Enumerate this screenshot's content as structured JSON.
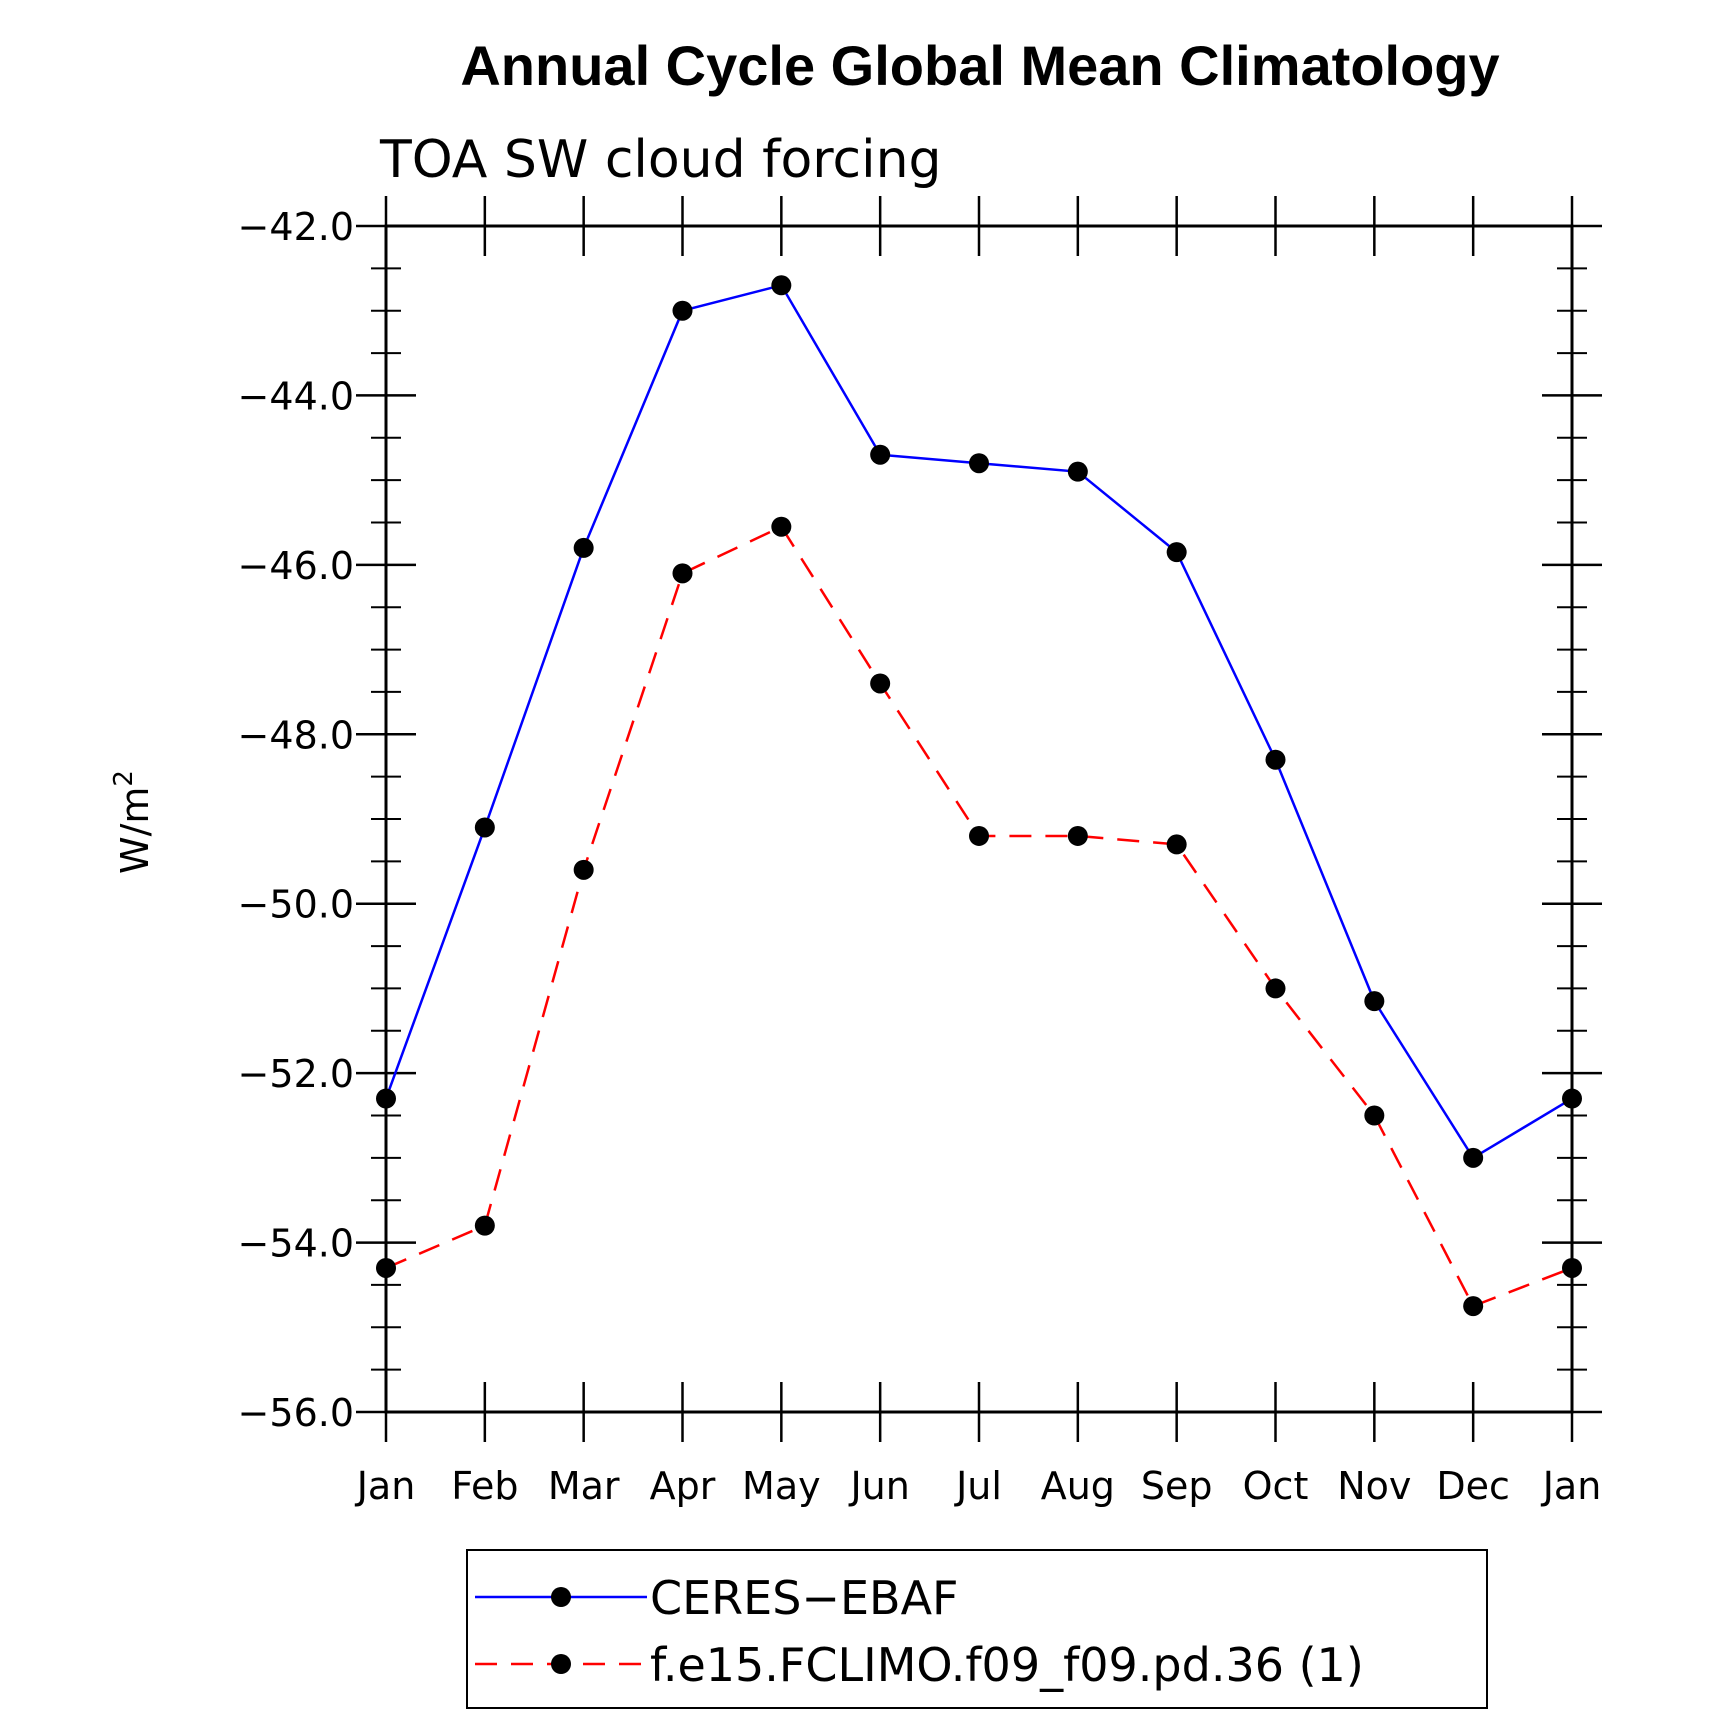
{
  "chart_data": {
    "type": "line",
    "title": "Annual Cycle Global Mean Climatology",
    "subtitle": "TOA SW cloud forcing",
    "ylabel_base": "W/m",
    "ylabel_sup": "2",
    "ylim": [
      -56.0,
      -42.0
    ],
    "yticks": [
      -42.0,
      -44.0,
      -46.0,
      -48.0,
      -50.0,
      -52.0,
      -54.0,
      -56.0
    ],
    "ytick_labels": [
      "−42.0",
      "−44.0",
      "−46.0",
      "−48.0",
      "−50.0",
      "−52.0",
      "−54.0",
      "−56.0"
    ],
    "categories": [
      "Jan",
      "Feb",
      "Mar",
      "Apr",
      "May",
      "Jun",
      "Jul",
      "Aug",
      "Sep",
      "Oct",
      "Nov",
      "Dec",
      "Jan"
    ],
    "series": [
      {
        "name": "CERES−EBAF",
        "color": "#0000ff",
        "dash": "solid",
        "values": [
          -52.3,
          -49.1,
          -45.8,
          -43.0,
          -42.7,
          -44.7,
          -44.8,
          -44.9,
          -45.85,
          -48.3,
          -51.15,
          -53.0,
          -52.3
        ]
      },
      {
        "name": "f.e15.FCLIMO.f09_f09.pd.36 (1)",
        "color": "#ff0000",
        "dash": "dashed",
        "values": [
          -54.3,
          -53.8,
          -49.6,
          -46.1,
          -45.55,
          -47.4,
          -49.2,
          -49.2,
          -49.3,
          -51.0,
          -52.5,
          -54.75,
          -54.3
        ]
      }
    ],
    "legend_position": "bottom",
    "grid": false
  }
}
